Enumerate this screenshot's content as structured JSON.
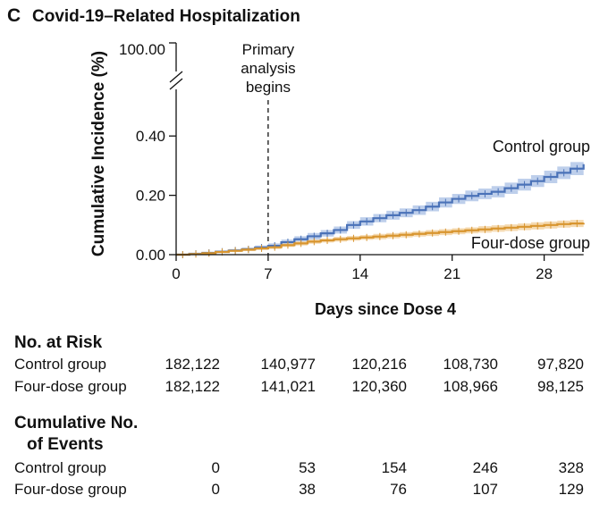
{
  "panel": {
    "letter": "C",
    "title": "Covid-19–Related Hospitalization"
  },
  "chart_data": {
    "type": "line",
    "title": "Covid-19–Related Hospitalization",
    "xlabel": "Days since Dose 4",
    "ylabel": "Cumulative Incidence (%)",
    "xlim": [
      0,
      31
    ],
    "ylim": [
      0,
      0.5
    ],
    "x_ticks": [
      "0",
      "7",
      "14",
      "21",
      "28"
    ],
    "y_ticks": [
      "0.00",
      "0.20",
      "0.40"
    ],
    "y_break_top_label": "100.00",
    "y_axis_broken": true,
    "annotation": {
      "x": 7,
      "text": [
        "Primary",
        "analysis",
        "begins"
      ],
      "style": "dashed vertical line"
    },
    "series": [
      {
        "name": "Control group",
        "color": "#4a72b8",
        "band_color": "#b3c7e8",
        "x": [
          0,
          1,
          2,
          3,
          4,
          5,
          6,
          7,
          8,
          9,
          10,
          11,
          12,
          13,
          14,
          15,
          16,
          17,
          18,
          19,
          20,
          21,
          22,
          23,
          24,
          25,
          26,
          27,
          28,
          29,
          30,
          31
        ],
        "y": [
          0.0,
          0.003,
          0.006,
          0.01,
          0.014,
          0.018,
          0.024,
          0.03,
          0.042,
          0.052,
          0.062,
          0.072,
          0.083,
          0.1,
          0.112,
          0.123,
          0.133,
          0.141,
          0.15,
          0.162,
          0.176,
          0.188,
          0.198,
          0.205,
          0.212,
          0.224,
          0.236,
          0.248,
          0.262,
          0.276,
          0.29,
          0.305
        ],
        "ci_halfwidth": [
          0.0,
          0.002,
          0.003,
          0.004,
          0.005,
          0.006,
          0.007,
          0.008,
          0.009,
          0.01,
          0.011,
          0.011,
          0.012,
          0.013,
          0.014,
          0.014,
          0.015,
          0.015,
          0.016,
          0.016,
          0.017,
          0.017,
          0.018,
          0.018,
          0.019,
          0.019,
          0.02,
          0.02,
          0.021,
          0.021,
          0.022,
          0.022
        ]
      },
      {
        "name": "Four-dose group",
        "color": "#d8952f",
        "band_color": "#f3d3a3",
        "x": [
          0,
          1,
          2,
          3,
          4,
          5,
          6,
          7,
          8,
          9,
          10,
          11,
          12,
          13,
          14,
          15,
          16,
          17,
          18,
          19,
          20,
          21,
          22,
          23,
          24,
          25,
          26,
          27,
          28,
          29,
          30,
          31
        ],
        "y": [
          0.0,
          0.002,
          0.005,
          0.009,
          0.013,
          0.017,
          0.021,
          0.025,
          0.032,
          0.038,
          0.044,
          0.048,
          0.052,
          0.055,
          0.058,
          0.061,
          0.064,
          0.067,
          0.07,
          0.073,
          0.076,
          0.079,
          0.082,
          0.085,
          0.088,
          0.091,
          0.094,
          0.097,
          0.1,
          0.103,
          0.105,
          0.107
        ],
        "ci_halfwidth": [
          0.0,
          0.002,
          0.002,
          0.003,
          0.004,
          0.005,
          0.005,
          0.006,
          0.006,
          0.007,
          0.007,
          0.007,
          0.008,
          0.008,
          0.008,
          0.009,
          0.009,
          0.009,
          0.009,
          0.01,
          0.01,
          0.01,
          0.01,
          0.011,
          0.011,
          0.011,
          0.011,
          0.012,
          0.012,
          0.012,
          0.012,
          0.012
        ]
      }
    ]
  },
  "risk_table": {
    "heading": "No. at Risk",
    "rows": [
      {
        "label": "Control group",
        "values": [
          "182,122",
          "140,977",
          "120,216",
          "108,730",
          "97,820"
        ]
      },
      {
        "label": "Four-dose group",
        "values": [
          "182,122",
          "141,021",
          "120,360",
          "108,966",
          "98,125"
        ]
      }
    ]
  },
  "events_table": {
    "heading_line1": "Cumulative No.",
    "heading_line2": "of Events",
    "rows": [
      {
        "label": "Control group",
        "values": [
          "0",
          "53",
          "154",
          "246",
          "328"
        ]
      },
      {
        "label": "Four-dose group",
        "values": [
          "0",
          "38",
          "76",
          "107",
          "129"
        ]
      }
    ]
  }
}
